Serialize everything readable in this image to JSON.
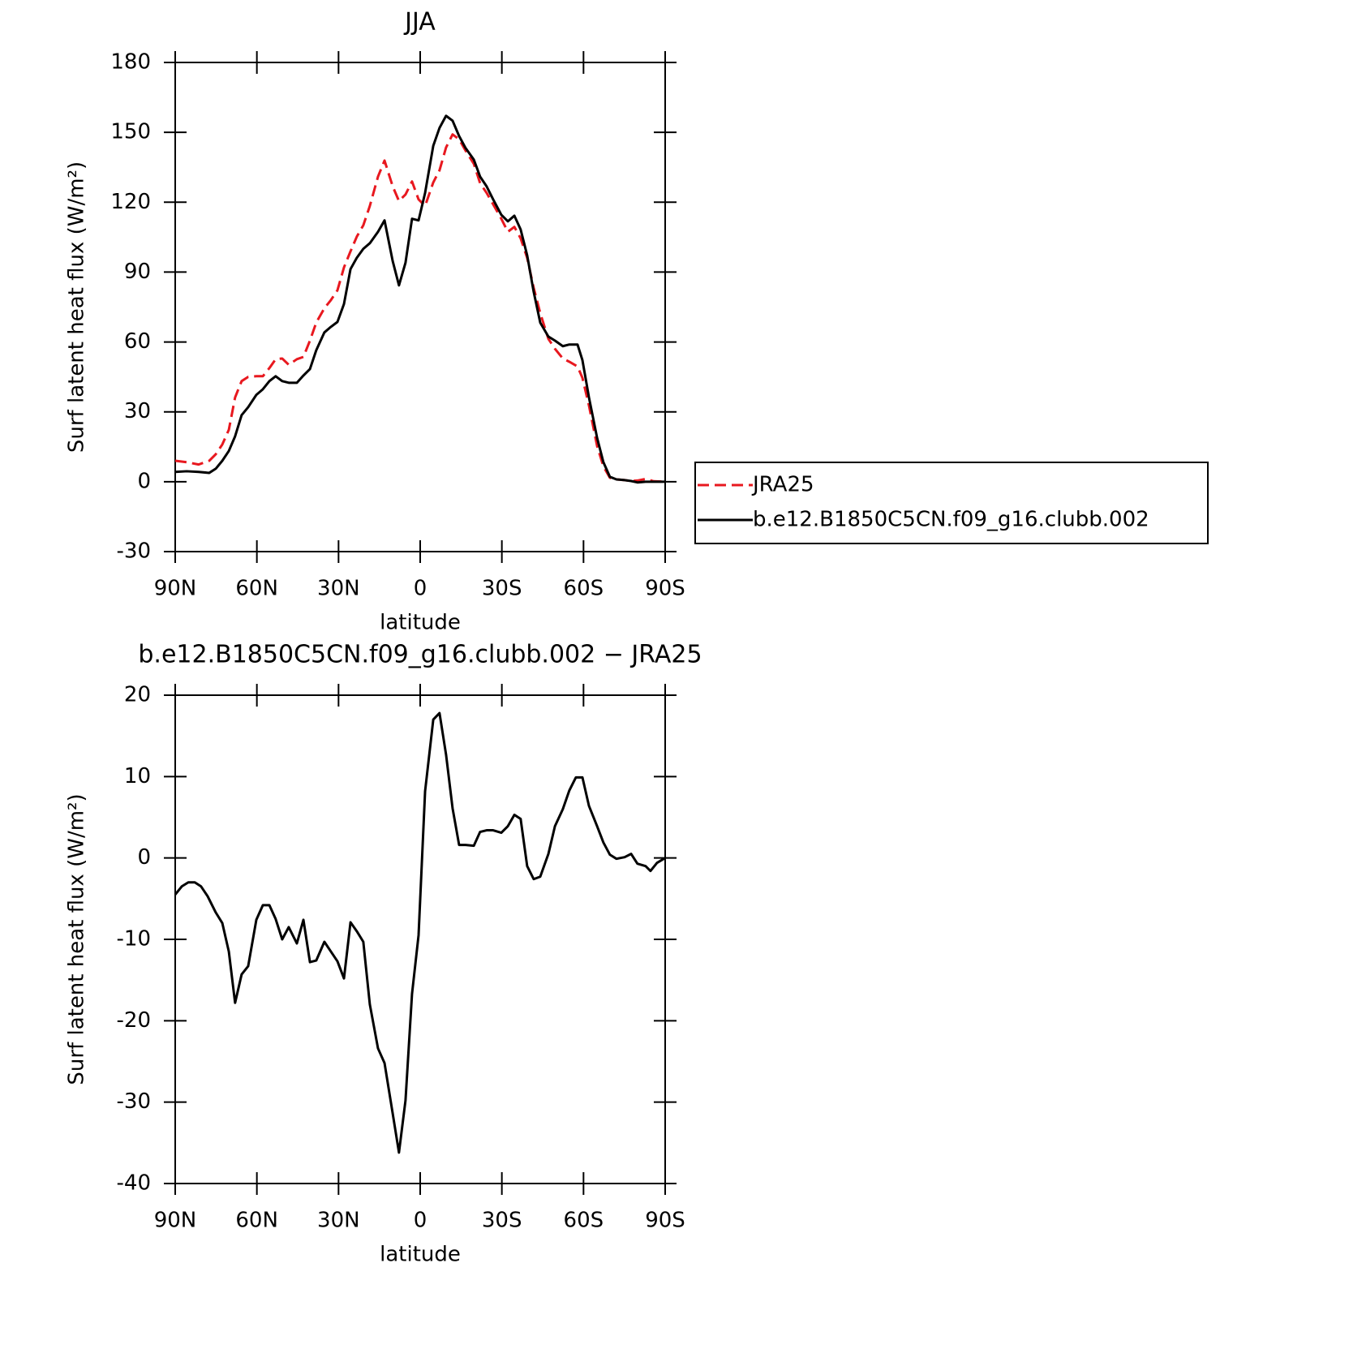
{
  "chart_data": [
    {
      "type": "line",
      "title": "JJA",
      "xlabel": "latitude",
      "ylabel": "Surf latent heat flux (W/m²)",
      "xlim": [
        90,
        -90
      ],
      "ylim": [
        -30,
        180
      ],
      "xticks": [
        {
          "value": 90,
          "label": "90N"
        },
        {
          "value": 60,
          "label": "60N"
        },
        {
          "value": 30,
          "label": "30N"
        },
        0,
        {
          "value": -30,
          "label": "30S"
        },
        {
          "value": -60,
          "label": "60S"
        },
        {
          "value": -90,
          "label": "90S"
        }
      ],
      "yticks": [
        -30,
        0,
        30,
        60,
        90,
        120,
        150,
        180
      ],
      "legend": "right",
      "x": [
        90,
        85.8,
        81.4,
        77.5,
        75.1,
        72.7,
        70.3,
        68,
        65.6,
        63.2,
        60.2,
        57.8,
        55.4,
        53.1,
        50.7,
        48.3,
        45.3,
        42.9,
        40.5,
        38.2,
        35.2,
        32.8,
        30.4,
        28,
        25.6,
        23.3,
        20.9,
        18.5,
        15.5,
        13.1,
        10.1,
        7.8,
        5.4,
        3,
        0.6,
        -1.8,
        -4.8,
        -7.1,
        -9.5,
        -11.9,
        -14.3,
        -16.7,
        -19.7,
        -22,
        -24.4,
        -26.8,
        -29.8,
        -32.2,
        -34.6,
        -36.9,
        -39.3,
        -41.7,
        -44.1,
        -47.1,
        -49.5,
        -52.4,
        -54.8,
        -57.8,
        -59.6,
        -62,
        -65,
        -67.3,
        -69.7,
        -72.1,
        -75.1,
        -77.5,
        -79.8,
        -82.8,
        -85.8,
        -90
      ],
      "series": [
        {
          "name": "JRA25",
          "color": "#e8181f",
          "linestyle": "dashed",
          "values": [
            9,
            8.4,
            7.4,
            9,
            11.8,
            16,
            22.3,
            36.2,
            43.2,
            45,
            45.3,
            45.3,
            48.8,
            52.6,
            52.9,
            50.2,
            52.6,
            53.6,
            60.6,
            68.3,
            74.5,
            78,
            82.2,
            92,
            98.9,
            105.2,
            110.1,
            118.4,
            131,
            137.9,
            126.8,
            120.5,
            123.3,
            128.9,
            121.2,
            118.4,
            128.5,
            133.7,
            143.5,
            149.1,
            147,
            142.1,
            136.5,
            128.2,
            124,
            119.1,
            112.9,
            107.3,
            109.4,
            104.5,
            96.1,
            83.2,
            72.4,
            61.3,
            57.1,
            52.9,
            51.5,
            49.5,
            44.6,
            32.7,
            15.3,
            6.6,
            1.7,
            1,
            0.7,
            0.3,
            0.5,
            1.2,
            0.2,
            0
          ]
        },
        {
          "name": "b.e12.B1850C5CN.f09_g16.clubb.002",
          "color": "#000000",
          "linestyle": "solid",
          "values": [
            4.2,
            4.5,
            4.2,
            3.8,
            5.6,
            9,
            13.2,
            19.5,
            28.6,
            32,
            37.3,
            39.7,
            43.2,
            45.3,
            43.2,
            42.5,
            42.5,
            45.6,
            48.4,
            56.4,
            64.1,
            66.5,
            68.6,
            76.3,
            91.3,
            96.1,
            100,
            102.4,
            107.3,
            112.2,
            94.7,
            84.3,
            94,
            112.9,
            112.2,
            124,
            144.2,
            151.9,
            157.1,
            155,
            148.4,
            143.2,
            138.3,
            131,
            126.8,
            121.2,
            114.6,
            111.8,
            114.2,
            108.3,
            97.2,
            81.5,
            68.3,
            62.3,
            60.6,
            58.2,
            58.9,
            58.9,
            52.2,
            36.2,
            18.8,
            8.4,
            2.1,
            1,
            0.7,
            0.3,
            -0.3,
            0,
            0,
            0
          ]
        }
      ]
    },
    {
      "type": "line",
      "title": "b.e12.B1850C5CN.f09_g16.clubb.002 − JRA25",
      "xlabel": "latitude",
      "ylabel": "Surf latent heat flux (W/m²)",
      "xlim": [
        90,
        -90
      ],
      "ylim": [
        -40,
        20
      ],
      "xticks": [
        {
          "value": 90,
          "label": "90N"
        },
        {
          "value": 60,
          "label": "60N"
        },
        {
          "value": 30,
          "label": "30N"
        },
        0,
        {
          "value": -30,
          "label": "30S"
        },
        {
          "value": -60,
          "label": "60S"
        },
        {
          "value": -90,
          "label": "90S"
        }
      ],
      "yticks": [
        -40,
        -30,
        -20,
        -10,
        0,
        10,
        20
      ],
      "color": "#000000",
      "x": [
        90,
        87.6,
        85.2,
        82.8,
        80.5,
        78.1,
        75.1,
        72.7,
        70.3,
        68,
        65.6,
        63.2,
        60.2,
        57.8,
        55.4,
        53.1,
        50.7,
        48.3,
        45.3,
        42.9,
        40.5,
        38.2,
        35.2,
        32.8,
        30.4,
        28,
        25.6,
        23.3,
        20.9,
        18.5,
        15.5,
        13.1,
        10.1,
        7.8,
        5.4,
        3,
        0.6,
        -1.8,
        -4.8,
        -7.1,
        -9.5,
        -11.9,
        -14.3,
        -16.7,
        -19.7,
        -22,
        -24.4,
        -26.8,
        -29.8,
        -32.2,
        -34.6,
        -36.9,
        -39.3,
        -41.7,
        -44.1,
        -47.1,
        -49.5,
        -52.4,
        -54.8,
        -57.2,
        -59.6,
        -62,
        -65,
        -67.3,
        -69.7,
        -72.1,
        -75.1,
        -77.5,
        -79.8,
        -82.8,
        -84.6,
        -87,
        -90
      ],
      "values": [
        -4.5,
        -3.5,
        -3,
        -3,
        -3.5,
        -4.7,
        -6.7,
        -8,
        -11.5,
        -17.8,
        -14.3,
        -13.3,
        -7.6,
        -5.8,
        -5.8,
        -7.5,
        -10,
        -8.5,
        -10.5,
        -7.6,
        -12.8,
        -12.6,
        -10.3,
        -11.5,
        -12.7,
        -14.8,
        -7.9,
        -9,
        -10.3,
        -18,
        -23.4,
        -25.2,
        -31.4,
        -36.2,
        -29.8,
        -16.7,
        -9.5,
        8.2,
        17,
        17.8,
        12.7,
        6.1,
        1.6,
        1.6,
        1.5,
        3.2,
        3.4,
        3.4,
        3.1,
        3.9,
        5.3,
        4.8,
        -1,
        -2.6,
        -2.3,
        0.5,
        3.9,
        6,
        8.3,
        9.9,
        9.9,
        6.4,
        3.9,
        1.9,
        0.4,
        -0.1,
        0.1,
        0.5,
        -0.7,
        -1,
        -1.6,
        -0.6,
        0
      ]
    }
  ]
}
